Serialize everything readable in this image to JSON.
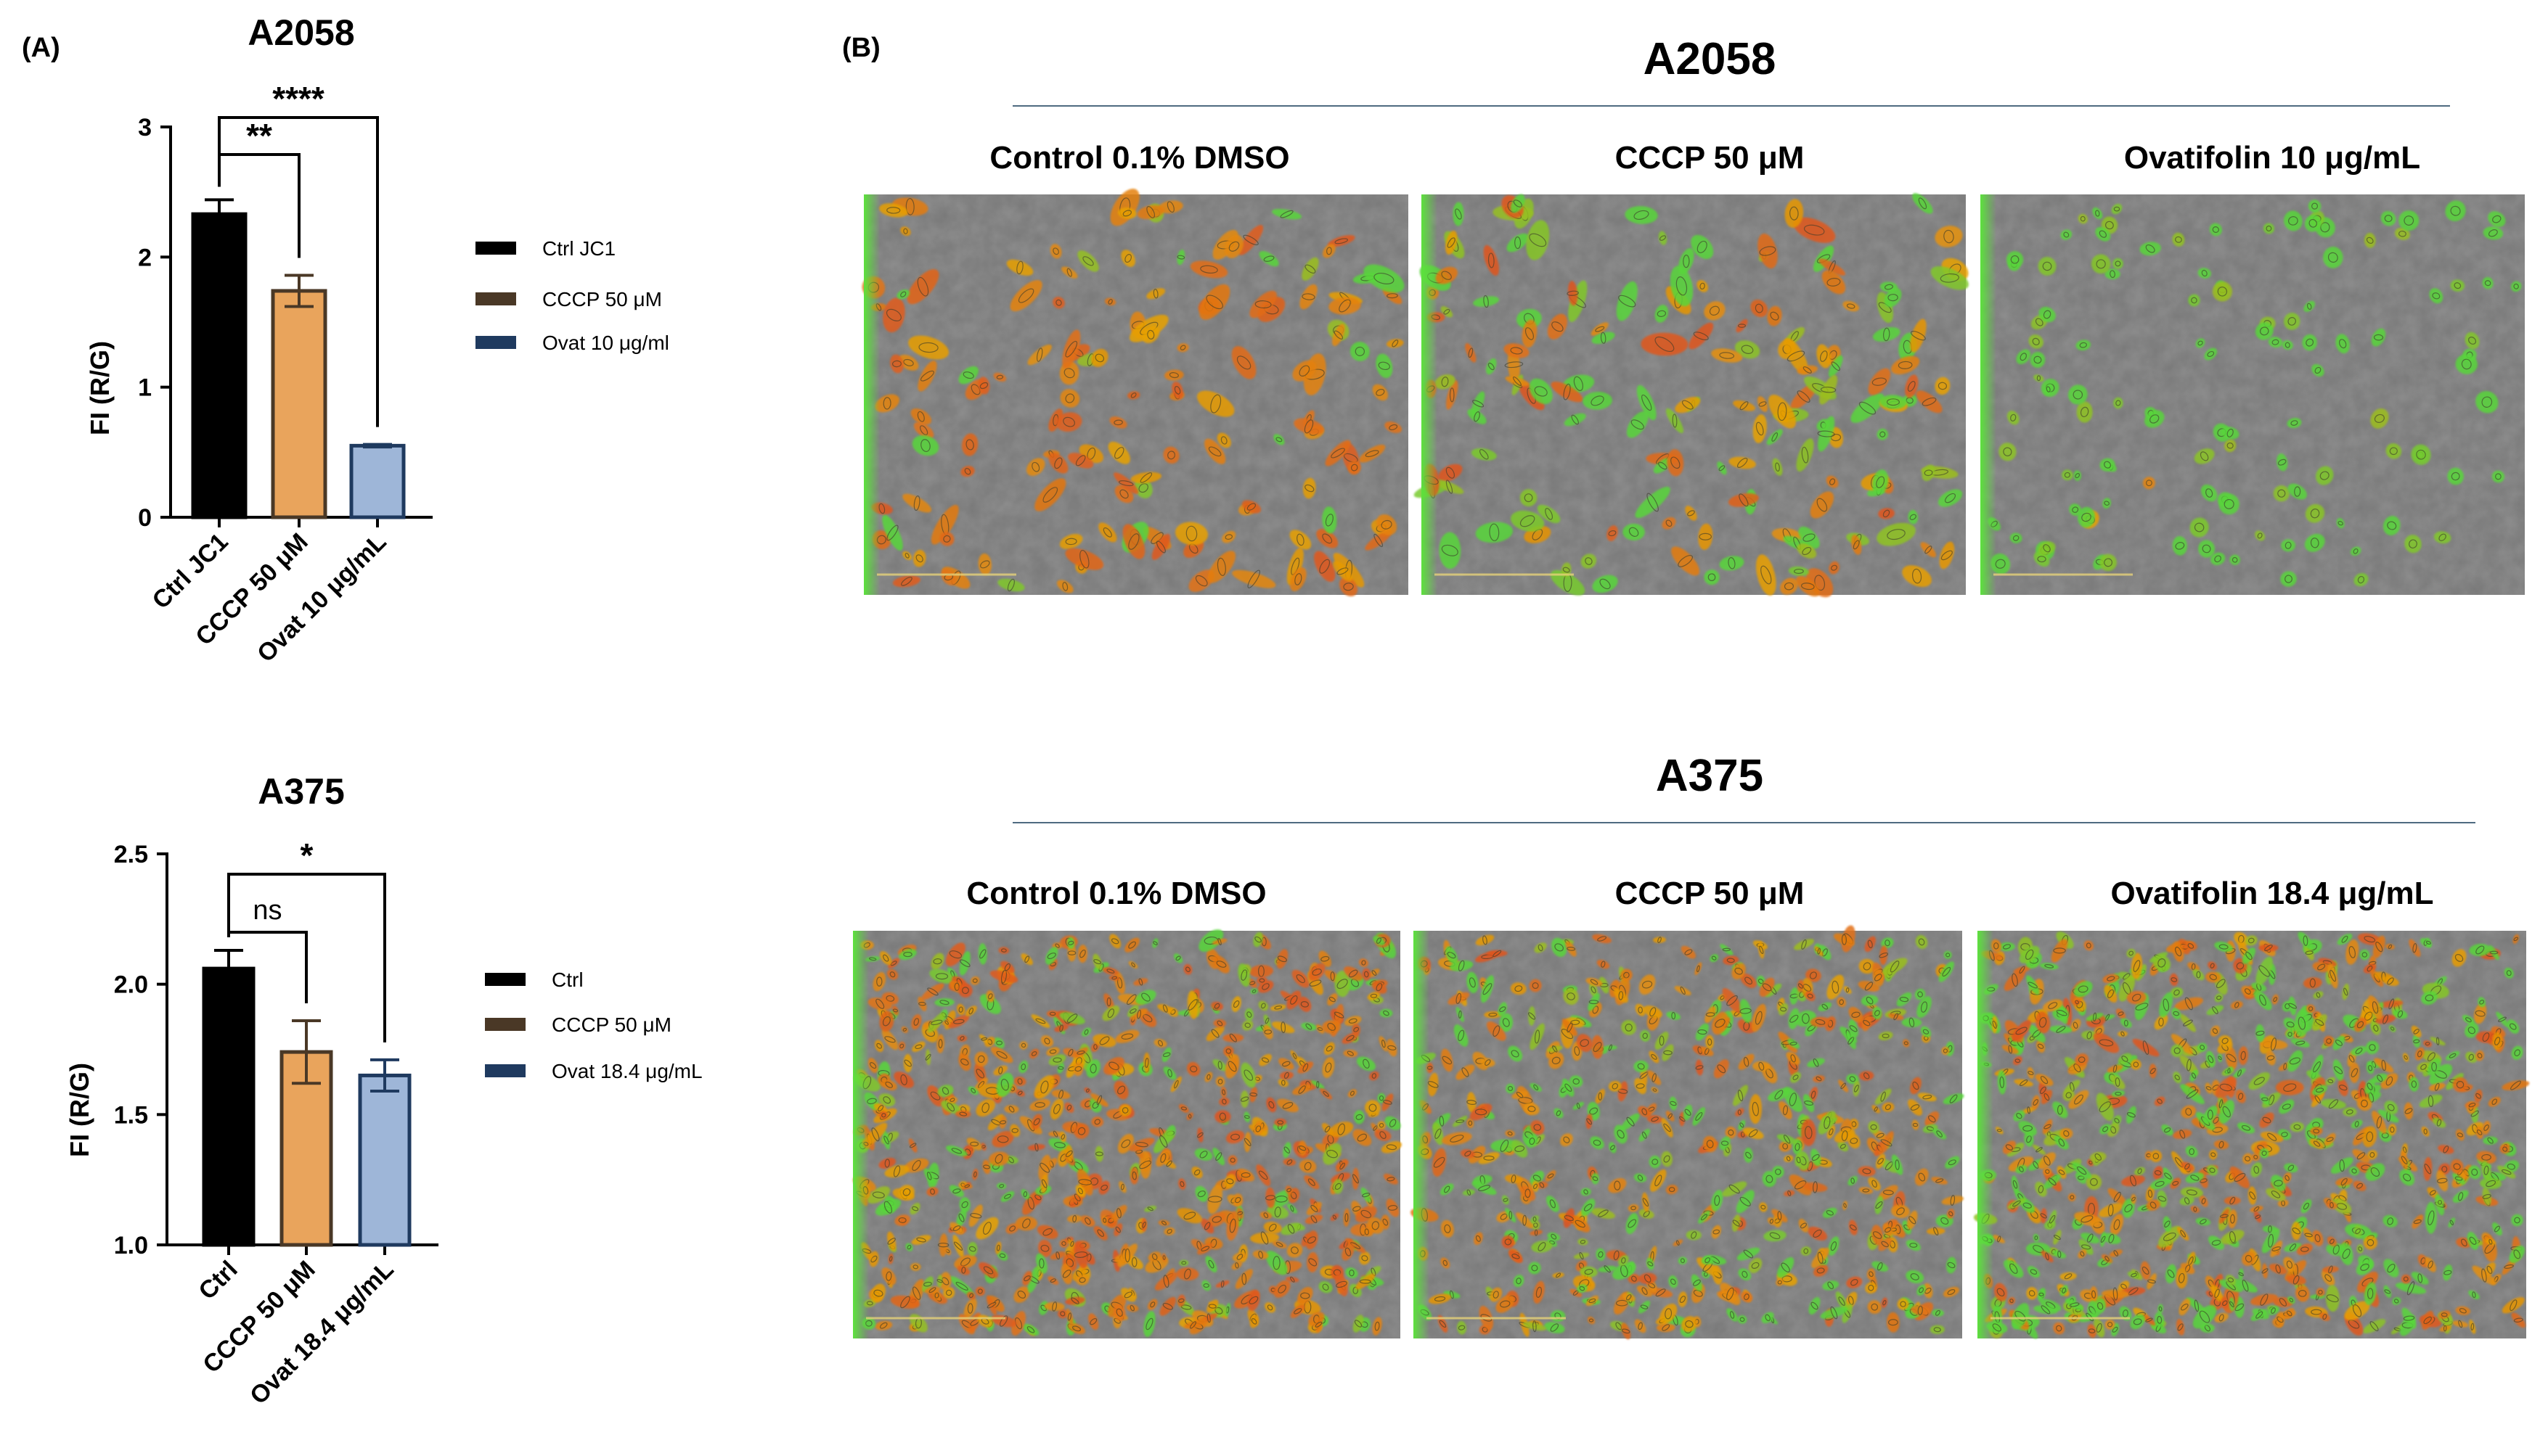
{
  "panel_a_label": "(A)",
  "panel_b_label": "(B)",
  "chart_data": [
    {
      "type": "bar",
      "title": "A2058",
      "ylabel": "FI (R/G)",
      "xlabel": "",
      "categories": [
        "Ctrl JC1",
        "CCCP 50 μM",
        "Ovat 10 μg/mL"
      ],
      "values": [
        2.33,
        1.74,
        0.55
      ],
      "errors": [
        0.11,
        0.12,
        0.01
      ],
      "colors": [
        "#000000",
        "#E9A45C",
        "#9EB6D8"
      ],
      "edge_colors": [
        "#000000",
        "#4A3826",
        "#1F3A5F"
      ],
      "ylim": [
        0,
        3
      ],
      "yticks": [
        0,
        1,
        2,
        3
      ],
      "legend": [
        "Ctrl JC1",
        "CCCP 50 μM",
        "Ovat 10 μg/ml"
      ],
      "legend_colors": [
        "#000000",
        "#4A3826",
        "#1F3A5F"
      ],
      "legend_position": "right",
      "significance": [
        {
          "from": 0,
          "to": 1,
          "label": "**"
        },
        {
          "from": 0,
          "to": 2,
          "label": "****"
        }
      ]
    },
    {
      "type": "bar",
      "title": "A375",
      "ylabel": "FI (R/G)",
      "xlabel": "",
      "categories": [
        "Ctrl",
        "CCCP 50 μM",
        "Ovat 18.4 μg/mL"
      ],
      "values": [
        2.06,
        1.74,
        1.65
      ],
      "errors": [
        0.07,
        0.12,
        0.06
      ],
      "colors": [
        "#000000",
        "#E9A45C",
        "#9EB6D8"
      ],
      "edge_colors": [
        "#000000",
        "#4A3826",
        "#1F3A5F"
      ],
      "ylim": [
        1.0,
        2.5
      ],
      "yticks": [
        1.0,
        1.5,
        2.0,
        2.5
      ],
      "legend": [
        "Ctrl",
        "CCCP 50 μM",
        "Ovat 18.4 μg/mL"
      ],
      "legend_colors": [
        "#000000",
        "#4A3826",
        "#1F3A5F"
      ],
      "legend_position": "right",
      "significance": [
        {
          "from": 0,
          "to": 1,
          "label": "ns"
        },
        {
          "from": 0,
          "to": 2,
          "label": "*"
        }
      ]
    }
  ],
  "micrographs": [
    {
      "title": "A2058",
      "labels": [
        "Control 0.1% DMSO",
        "CCCP 50 μM",
        "Ovatifolin 10 μg/mL"
      ],
      "mix": [
        0.85,
        0.45,
        0.05
      ],
      "density": [
        150,
        170,
        120
      ]
    },
    {
      "title": "A375",
      "labels": [
        "Control 0.1% DMSO",
        "CCCP 50 μM",
        "Ovatifolin 18.4 μg/mL"
      ],
      "mix": [
        0.75,
        0.55,
        0.5
      ],
      "density": [
        650,
        520,
        700
      ]
    }
  ],
  "colors": {
    "line_rule": "#4E6A80",
    "micrograph_bg": "#787878",
    "cell_red": "#E0531E",
    "cell_orange": "#E8A400",
    "cell_green": "#58D63A"
  }
}
